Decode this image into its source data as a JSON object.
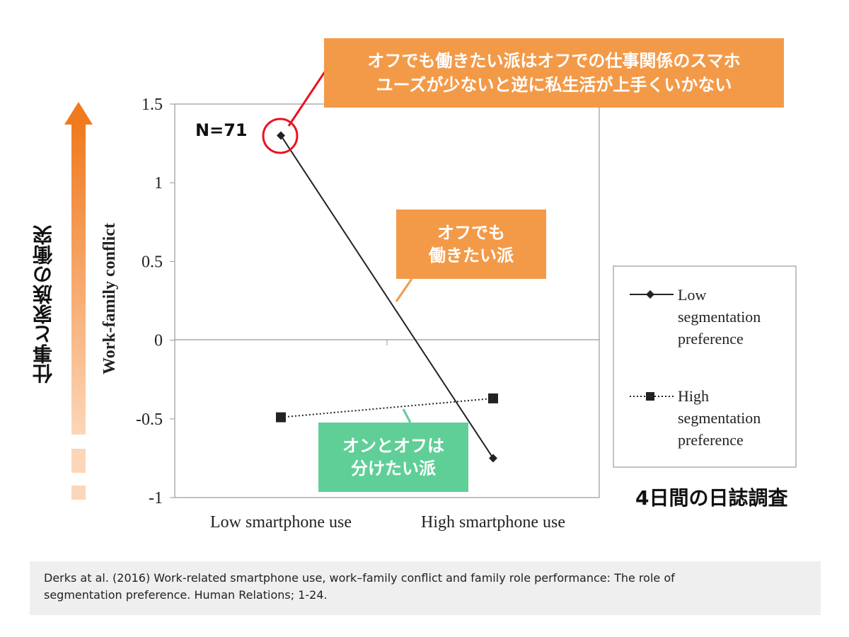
{
  "chart_data": {
    "type": "line",
    "categories": [
      "Low smartphone use",
      "High smartphone use"
    ],
    "series": [
      {
        "name": "Low segmentation preference",
        "values": [
          1.3,
          -0.75
        ],
        "style": "solid",
        "marker": "diamond"
      },
      {
        "name": "High segmentation preference",
        "values": [
          -0.49,
          -0.37
        ],
        "style": "dotted",
        "marker": "square"
      }
    ],
    "ylabel": "Work-family conflict",
    "ylim": [
      -1,
      1.5
    ],
    "yticks": [
      "1.5",
      "1",
      "0.5",
      "0",
      "-0.5",
      "-1"
    ],
    "legend_position": "right",
    "legend_lines": [
      [
        "Low",
        "segmentation",
        "preference"
      ],
      [
        "High",
        "segmentation",
        "preference"
      ]
    ]
  },
  "annotations": {
    "n_label": "N=71",
    "callout_top_line1": "オフでも働きたい派はオフでの仕事関係のスマホ",
    "callout_top_line2": "ユーズが少ないと逆に私生活が上手くいかない",
    "callout_off_line1": "オフでも",
    "callout_off_line2": "働きたい派",
    "callout_on_line1": "オンとオフは",
    "callout_on_line2": "分けたい派",
    "left_axis_label": "仕事と家族の衝突",
    "survey_label": "4日間の日誌調査"
  },
  "citation": {
    "line1": "Derks at al. (2016) Work-related smartphone use, work–family conflict and family role performance: The role of",
    "line2": "segmentation preference. Human Relations; 1-24."
  },
  "colors": {
    "orange": "#f39a48",
    "green": "#5fcf97",
    "arrow": "#f07a1e",
    "highlight_circle": "#e8141e",
    "series": "#222222"
  }
}
